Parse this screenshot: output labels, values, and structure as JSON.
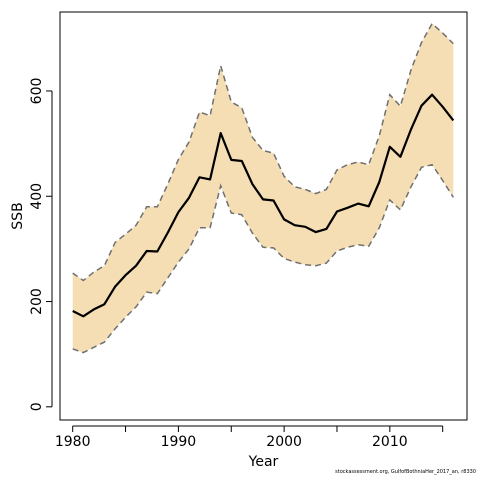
{
  "chart_data": {
    "type": "line",
    "title": "",
    "xlabel": "Year",
    "ylabel": "SSB",
    "xlim": [
      1978.8,
      2017.3
    ],
    "ylim": [
      -25,
      750
    ],
    "x_ticks": [
      1980,
      1990,
      2000,
      2010
    ],
    "y_ticks": [
      0,
      200,
      400,
      600
    ],
    "grid": false,
    "legend": "none",
    "colors": {
      "band_fill": "#f5deb3",
      "estimate_line": "#000000",
      "interval_line": "#707070",
      "axis": "#000000"
    },
    "x": [
      1980,
      1981,
      1982,
      1983,
      1984,
      1985,
      1986,
      1987,
      1988,
      1989,
      1990,
      1991,
      1992,
      1993,
      1994,
      1995,
      1996,
      1997,
      1998,
      1999,
      2000,
      2001,
      2002,
      2003,
      2004,
      2005,
      2006,
      2007,
      2008,
      2009,
      2010,
      2011,
      2012,
      2013,
      2014,
      2015,
      2016
    ],
    "series": [
      {
        "role": "estimate",
        "values": [
          182,
          172,
          185,
          195,
          228,
          250,
          268,
          296,
          295,
          331,
          370,
          397,
          436,
          432,
          520,
          469,
          467,
          423,
          394,
          392,
          356,
          345,
          342,
          332,
          338,
          371,
          378,
          386,
          381,
          427,
          494,
          475,
          527,
          572,
          593,
          570,
          544
        ]
      },
      {
        "role": "upper",
        "values": [
          254,
          240,
          256,
          268,
          312,
          328,
          345,
          380,
          380,
          423,
          470,
          503,
          560,
          553,
          648,
          579,
          568,
          512,
          487,
          482,
          438,
          418,
          413,
          405,
          413,
          450,
          460,
          465,
          460,
          515,
          593,
          571,
          640,
          692,
          728,
          710,
          690
        ]
      },
      {
        "role": "lower",
        "values": [
          110,
          103,
          113,
          123,
          148,
          170,
          190,
          218,
          215,
          245,
          275,
          300,
          340,
          340,
          420,
          368,
          365,
          330,
          303,
          302,
          282,
          275,
          270,
          268,
          273,
          296,
          303,
          308,
          305,
          340,
          393,
          374,
          418,
          455,
          460,
          430,
          398
        ]
      }
    ]
  },
  "footer_note": "stockassessment.org, GulfofBothniaHer_2017_an, r8330"
}
